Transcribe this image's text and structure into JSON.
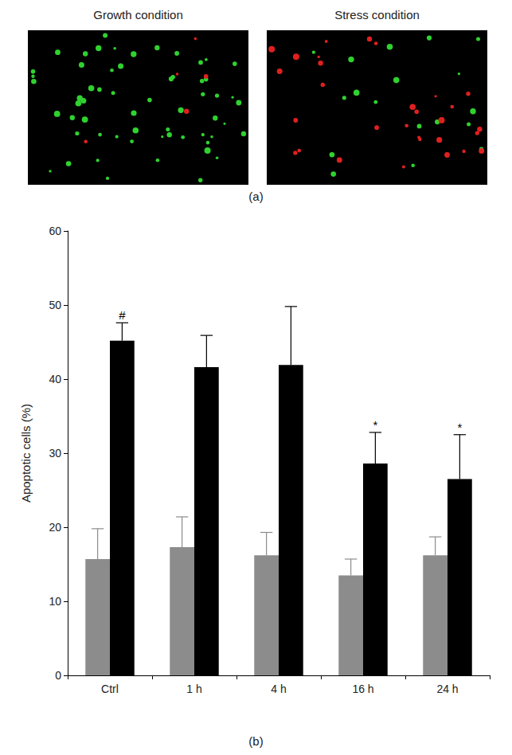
{
  "figure": {
    "panel_a": {
      "label": "(a)",
      "images": [
        "Growth condition",
        "Stress condition"
      ]
    },
    "panel_b": {
      "label": "(b)"
    }
  },
  "chart_data": {
    "type": "bar",
    "categories": [
      "Ctrl",
      "1 h",
      "4 h",
      "16 h",
      "24 h"
    ],
    "y_label": "Apoptotic cells (%)",
    "ylim": [
      0,
      60
    ],
    "yticks": [
      0,
      10,
      20,
      30,
      40,
      50,
      60
    ],
    "grid": false,
    "series": [
      {
        "color": "#8c8c8c",
        "values": [
          15.7,
          17.3,
          16.2,
          13.5,
          16.2
        ],
        "errors": [
          4.1,
          4.1,
          3.1,
          2.2,
          2.5
        ]
      },
      {
        "color": "#000000",
        "values": [
          45.2,
          41.6,
          41.9,
          28.6,
          26.5
        ],
        "errors": [
          2.4,
          4.3,
          7.9,
          4.2,
          6.0
        ],
        "annotations": [
          "#",
          null,
          null,
          "*",
          "*"
        ]
      }
    ]
  }
}
